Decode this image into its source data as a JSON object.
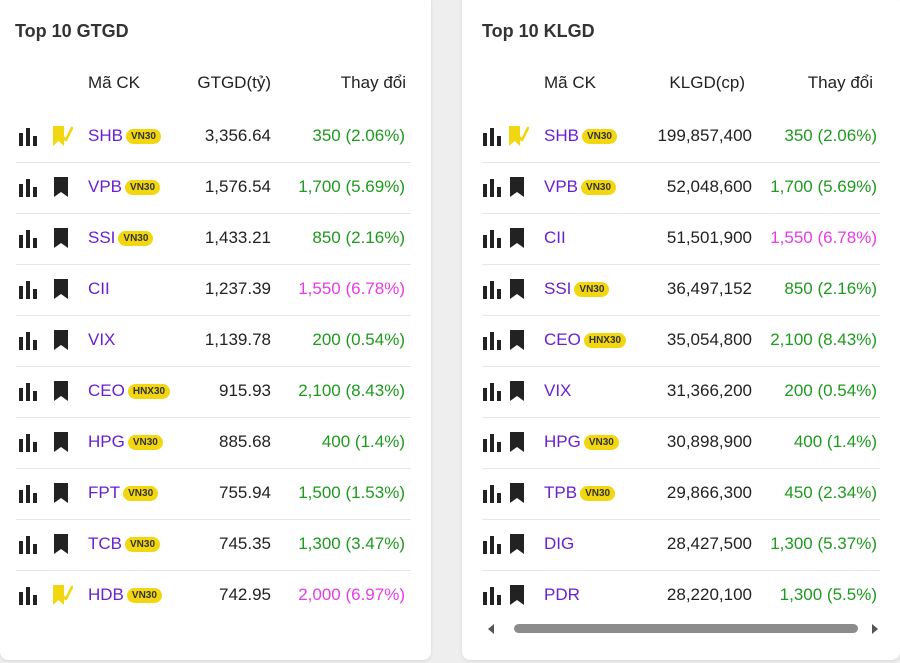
{
  "gtgd": {
    "title": "Top 10 GTGD",
    "headers": {
      "code": "Mã CK",
      "value": "GTGD(tỷ)",
      "change": "Thay đổi"
    },
    "rows": [
      {
        "code": "SHB",
        "badge": "VN30",
        "value": "3,356.64",
        "change": "350 (2.06%)",
        "trend": "up",
        "watched": true
      },
      {
        "code": "VPB",
        "badge": "VN30",
        "value": "1,576.54",
        "change": "1,700 (5.69%)",
        "trend": "up",
        "watched": false
      },
      {
        "code": "SSI",
        "badge": "VN30",
        "value": "1,433.21",
        "change": "850 (2.16%)",
        "trend": "up",
        "watched": false
      },
      {
        "code": "CII",
        "badge": "",
        "value": "1,237.39",
        "change": "1,550 (6.78%)",
        "trend": "ceil",
        "watched": false
      },
      {
        "code": "VIX",
        "badge": "",
        "value": "1,139.78",
        "change": "200 (0.54%)",
        "trend": "up",
        "watched": false
      },
      {
        "code": "CEO",
        "badge": "HNX30",
        "value": "915.93",
        "change": "2,100 (8.43%)",
        "trend": "up",
        "watched": false
      },
      {
        "code": "HPG",
        "badge": "VN30",
        "value": "885.68",
        "change": "400 (1.4%)",
        "trend": "up",
        "watched": false
      },
      {
        "code": "FPT",
        "badge": "VN30",
        "value": "755.94",
        "change": "1,500 (1.53%)",
        "trend": "up",
        "watched": false
      },
      {
        "code": "TCB",
        "badge": "VN30",
        "value": "745.35",
        "change": "1,300 (3.47%)",
        "trend": "up",
        "watched": false
      },
      {
        "code": "HDB",
        "badge": "VN30",
        "value": "742.95",
        "change": "2,000 (6.97%)",
        "trend": "ceil",
        "watched": true
      }
    ]
  },
  "klgd": {
    "title": "Top 10 KLGD",
    "headers": {
      "code": "Mã CK",
      "value": "KLGD(cp)",
      "change": "Thay đổi"
    },
    "rows": [
      {
        "code": "SHB",
        "badge": "VN30",
        "value": "199,857,400",
        "change": "350 (2.06%)",
        "trend": "up",
        "watched": true
      },
      {
        "code": "VPB",
        "badge": "VN30",
        "value": "52,048,600",
        "change": "1,700 (5.69%)",
        "trend": "up",
        "watched": false
      },
      {
        "code": "CII",
        "badge": "",
        "value": "51,501,900",
        "change": "1,550 (6.78%)",
        "trend": "ceil",
        "watched": false
      },
      {
        "code": "SSI",
        "badge": "VN30",
        "value": "36,497,152",
        "change": "850 (2.16%)",
        "trend": "up",
        "watched": false
      },
      {
        "code": "CEO",
        "badge": "HNX30",
        "value": "35,054,800",
        "change": "2,100 (8.43%)",
        "trend": "up",
        "watched": false
      },
      {
        "code": "VIX",
        "badge": "",
        "value": "31,366,200",
        "change": "200 (0.54%)",
        "trend": "up",
        "watched": false
      },
      {
        "code": "HPG",
        "badge": "VN30",
        "value": "30,898,900",
        "change": "400 (1.4%)",
        "trend": "up",
        "watched": false
      },
      {
        "code": "TPB",
        "badge": "VN30",
        "value": "29,866,300",
        "change": "450 (2.34%)",
        "trend": "up",
        "watched": false
      },
      {
        "code": "DIG",
        "badge": "",
        "value": "28,427,500",
        "change": "1,300 (5.37%)",
        "trend": "up",
        "watched": false
      },
      {
        "code": "PDR",
        "badge": "",
        "value": "28,220,100",
        "change": "1,300 (5.5%)",
        "trend": "up",
        "watched": false
      }
    ]
  },
  "colors": {
    "up": "#1e9a1e",
    "ceil": "#e63ce6",
    "code": "#6a1fd0",
    "badge": "#f2d60f",
    "watched": "#f2d60f"
  },
  "icons": {
    "chart": "bar-chart-icon",
    "watch": "bookmark-icon",
    "watched": "bookmark-check-icon"
  }
}
